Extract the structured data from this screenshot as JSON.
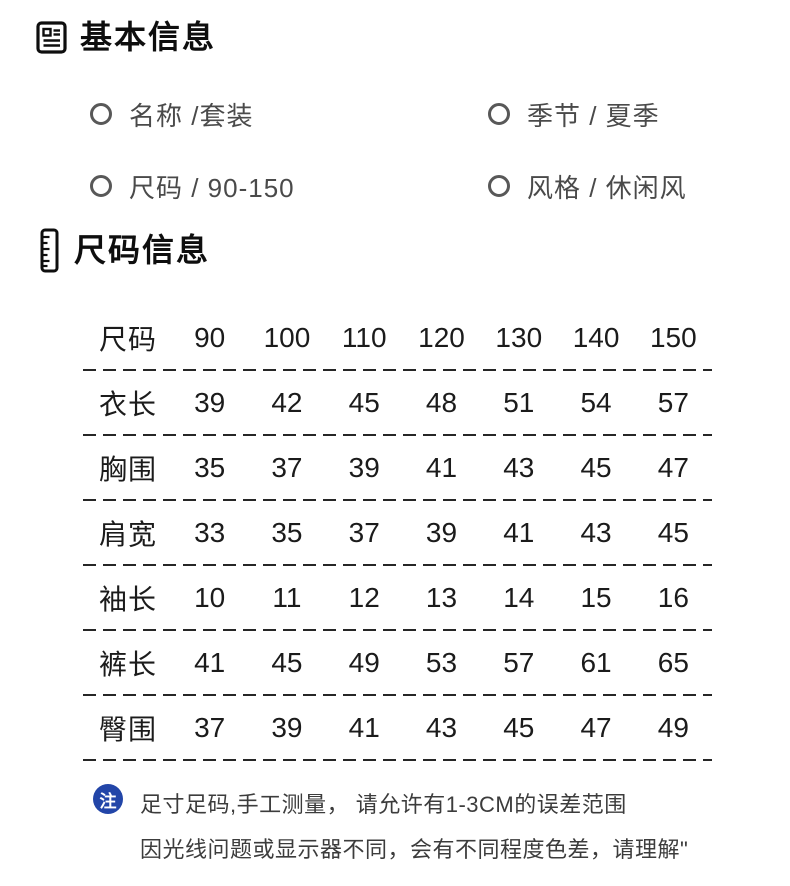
{
  "basic_info": {
    "title": "基本信息",
    "items": [
      {
        "text": "名称 /套装"
      },
      {
        "text": "季节 / 夏季"
      },
      {
        "text": "尺码 / 90-150"
      },
      {
        "text": "风格 / 休闲风"
      }
    ]
  },
  "size_info": {
    "title": "尺码信息",
    "table": {
      "header": {
        "label": "尺码",
        "values": [
          "90",
          "100",
          "110",
          "120",
          "130",
          "140",
          "150"
        ]
      },
      "rows": [
        {
          "label": "衣长",
          "values": [
            "39",
            "42",
            "45",
            "48",
            "51",
            "54",
            "57"
          ]
        },
        {
          "label": "胸围",
          "values": [
            "35",
            "37",
            "39",
            "41",
            "43",
            "45",
            "47"
          ]
        },
        {
          "label": "肩宽",
          "values": [
            "33",
            "35",
            "37",
            "39",
            "41",
            "43",
            "45"
          ]
        },
        {
          "label": "袖长",
          "values": [
            "10",
            "11",
            "12",
            "13",
            "14",
            "15",
            "16"
          ]
        },
        {
          "label": "裤长",
          "values": [
            "41",
            "45",
            "49",
            "53",
            "57",
            "61",
            "65"
          ]
        },
        {
          "label": "臀围",
          "values": [
            "37",
            "39",
            "41",
            "43",
            "45",
            "47",
            "49"
          ]
        }
      ]
    }
  },
  "note": {
    "badge": "注",
    "badge_color": "#2245a8",
    "lines": [
      "足寸足码,手工测量， 请允许有1-3CM的误差范围",
      "因光线问题或显示器不同，会有不同程度色差，请理解\""
    ]
  }
}
